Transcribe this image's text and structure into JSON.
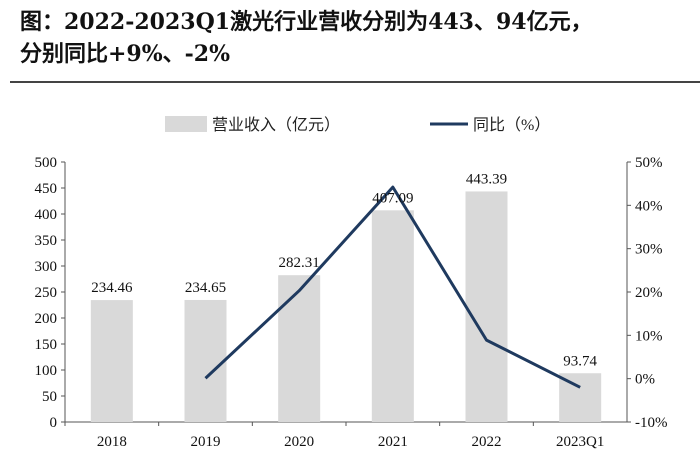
{
  "title_line1": "图：2022-2023Q1激光行业营收分别为443、94亿元，",
  "title_line2": "分别同比+9%、-2%",
  "chart_data": {
    "type": "bar+line",
    "categories": [
      "2018",
      "2019",
      "2020",
      "2021",
      "2022",
      "2023Q1"
    ],
    "series": [
      {
        "name": "营业收入（亿元）",
        "type": "bar",
        "axis": "left",
        "color": "#d9d9d9",
        "values": [
          234.46,
          234.65,
          282.31,
          407.09,
          443.39,
          93.74
        ],
        "labels": [
          "234.46",
          "234.65",
          "282.31",
          "407.09",
          "443.39",
          "93.74"
        ]
      },
      {
        "name": "同比（%）",
        "type": "line",
        "axis": "right",
        "color": "#1f3a5f",
        "values": [
          null,
          0.1,
          20.3,
          44.2,
          8.9,
          -2.0
        ]
      }
    ],
    "y_left": {
      "range": [
        0,
        500
      ],
      "ticks": [
        "0",
        "50",
        "100",
        "150",
        "200",
        "250",
        "300",
        "350",
        "400",
        "450",
        "500"
      ]
    },
    "y_right": {
      "range": [
        -10,
        50
      ],
      "ticks": [
        "-10%",
        "0%",
        "10%",
        "20%",
        "30%",
        "40%",
        "50%"
      ]
    },
    "legend_placement": "top",
    "grid": false
  }
}
